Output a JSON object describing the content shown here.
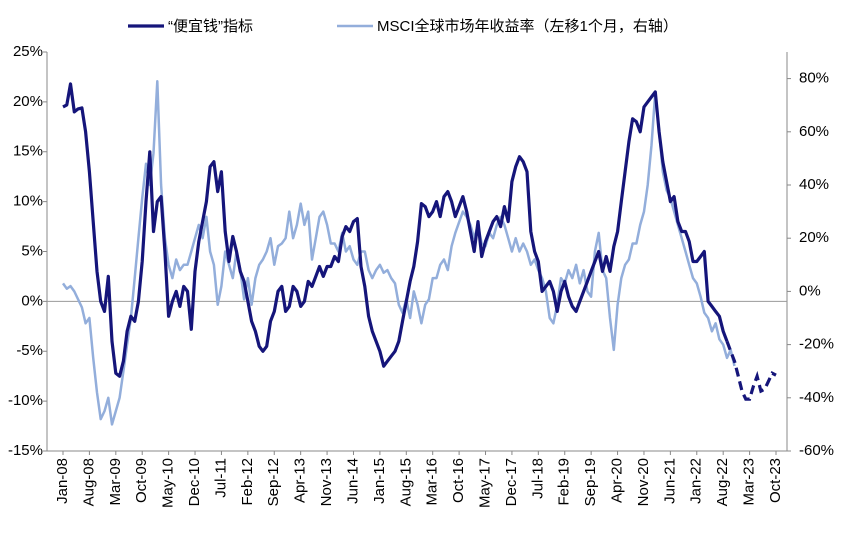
{
  "chart_data": {
    "type": "line",
    "categories": [
      "Jan-08",
      null,
      null,
      null,
      null,
      null,
      null,
      "Aug-08",
      null,
      null,
      null,
      null,
      null,
      null,
      "Mar-09",
      null,
      null,
      null,
      null,
      null,
      null,
      "Oct-09",
      null,
      null,
      null,
      null,
      null,
      null,
      "May-10",
      null,
      null,
      null,
      null,
      null,
      null,
      "Dec-10",
      null,
      null,
      null,
      null,
      null,
      null,
      "Jul-11",
      null,
      null,
      null,
      null,
      null,
      null,
      "Feb-12",
      null,
      null,
      null,
      null,
      null,
      null,
      "Sep-12",
      null,
      null,
      null,
      null,
      null,
      null,
      "Apr-13",
      null,
      null,
      null,
      null,
      null,
      null,
      "Nov-13",
      null,
      null,
      null,
      null,
      null,
      null,
      "Jun-14",
      null,
      null,
      null,
      null,
      null,
      null,
      "Jan-15",
      null,
      null,
      null,
      null,
      null,
      null,
      "Aug-15",
      null,
      null,
      null,
      null,
      null,
      null,
      "Mar-16",
      null,
      null,
      null,
      null,
      null,
      null,
      "Oct-16",
      null,
      null,
      null,
      null,
      null,
      null,
      "May-17",
      null,
      null,
      null,
      null,
      null,
      null,
      "Dec-17",
      null,
      null,
      null,
      null,
      null,
      null,
      "Jul-18",
      null,
      null,
      null,
      null,
      null,
      null,
      "Feb-19",
      null,
      null,
      null,
      null,
      null,
      null,
      "Sep-19",
      null,
      null,
      null,
      null,
      null,
      null,
      "Apr-20",
      null,
      null,
      null,
      null,
      null,
      null,
      "Nov-20",
      null,
      null,
      null,
      null,
      null,
      null,
      "Jun-21",
      null,
      null,
      null,
      null,
      null,
      null,
      "Jan-22",
      null,
      null,
      null,
      null,
      null,
      null,
      "Aug-22",
      null,
      null,
      null,
      null,
      null,
      null,
      "Mar-23",
      null,
      null,
      null,
      null,
      null,
      null,
      "Oct-23"
    ],
    "series": [
      {
        "name": "“便宜钱”指标",
        "color": "#15157a",
        "dash_from": 176,
        "values": [
          19.5,
          19.7,
          21.8,
          19,
          19.3,
          19.4,
          17,
          13,
          8,
          3,
          0,
          -1,
          2.5,
          -4,
          -7.2,
          -7.5,
          -6,
          -3,
          -1.5,
          -2,
          0,
          4,
          10,
          15,
          7,
          10,
          10.5,
          5,
          -1.5,
          0,
          1,
          -0.5,
          1.5,
          1,
          -2.8,
          3,
          6,
          8,
          10,
          13.5,
          14,
          11,
          13,
          7,
          4,
          6.5,
          5,
          3,
          2,
          0,
          -2,
          -3,
          -4.5,
          -5,
          -4.5,
          -2,
          -1,
          1,
          1.5,
          -1,
          -0.5,
          1.5,
          1,
          -0.5,
          0,
          2,
          1.5,
          2.5,
          3.5,
          2.5,
          3.5,
          3.5,
          4.5,
          4,
          6.5,
          7.5,
          7,
          8,
          8.3,
          3.5,
          1.5,
          -1.5,
          -3,
          -4,
          -5,
          -6.5,
          -6,
          -5.5,
          -5,
          -4,
          -2,
          0,
          2,
          3.5,
          6,
          9.8,
          9.5,
          8.5,
          9,
          10,
          8.5,
          10.5,
          11,
          10,
          8.5,
          9.5,
          10.5,
          9,
          7,
          5,
          8,
          4.5,
          6,
          7,
          8,
          8.5,
          7.5,
          9.5,
          8,
          12,
          13.5,
          14.5,
          14,
          13,
          7,
          5,
          4,
          1,
          1.5,
          2,
          1,
          -1,
          1,
          2,
          0.5,
          -0.5,
          -1,
          0,
          1,
          2,
          3,
          4,
          5,
          3,
          4.5,
          3,
          5.5,
          7,
          10,
          13,
          16,
          18.3,
          18,
          17,
          19.5,
          20,
          20.5,
          21,
          17,
          14,
          12,
          10,
          10.5,
          8,
          7,
          7,
          6,
          4,
          4,
          4.5,
          5,
          0,
          -0.5,
          -1,
          -1.5,
          -3,
          -4,
          -5,
          -6,
          -7.5,
          -9,
          -9.8,
          -9.8,
          -8.5,
          -7.5,
          -9,
          -8.8,
          -8,
          -7.2,
          -7.4
        ]
      },
      {
        "name": "MSCI全球市场年收益率（左移1个月，右轴）",
        "color": "#93aedb",
        "axis": "y2",
        "values": [
          3,
          1,
          2,
          0,
          -3,
          -6,
          -12,
          -10,
          -25,
          -38,
          -48,
          -45,
          -40,
          -50,
          -45,
          -40,
          -30,
          -20,
          -10,
          5,
          20,
          35,
          48,
          40,
          52,
          79,
          40,
          20,
          10,
          5,
          12,
          8,
          10,
          10,
          15,
          20,
          25,
          20,
          28,
          15,
          10,
          -5,
          2,
          15,
          10,
          5,
          15,
          8,
          -3,
          5,
          -5,
          5,
          10,
          12,
          15,
          20,
          10,
          17,
          18,
          20,
          30,
          20,
          25,
          33,
          25,
          30,
          12,
          20,
          28,
          30,
          25,
          18,
          18,
          15,
          22,
          15,
          17,
          12,
          10,
          15,
          15,
          8,
          5,
          8,
          10,
          7,
          8,
          5,
          3,
          -5,
          -8,
          -3,
          -10,
          0,
          -5,
          -12,
          -5,
          -3,
          5,
          5,
          10,
          12,
          8,
          17,
          22,
          26,
          30,
          28,
          25,
          20,
          25,
          18,
          17,
          22,
          20,
          25,
          28,
          25,
          20,
          15,
          20,
          15,
          18,
          15,
          10,
          12,
          8,
          5,
          0,
          -10,
          -12,
          -5,
          5,
          3,
          8,
          5,
          10,
          3,
          8,
          0,
          -2,
          15,
          22,
          8,
          5,
          -10,
          -22,
          -5,
          5,
          10,
          12,
          18,
          18,
          25,
          30,
          40,
          55,
          75,
          60,
          45,
          38,
          35,
          30,
          25,
          20,
          15,
          10,
          5,
          3,
          -2,
          -8,
          -10,
          -15,
          -12,
          -18,
          -20,
          -25,
          -22,
          -28,
          null,
          null,
          null,
          null,
          null,
          null,
          null,
          null,
          null,
          null,
          null
        ]
      }
    ],
    "ylim": [
      -15,
      25
    ],
    "yticks": [
      {
        "value": -15,
        "label": "-15%"
      },
      {
        "value": -10,
        "label": "-10%"
      },
      {
        "value": -5,
        "label": "-5%"
      },
      {
        "value": 0,
        "label": "0%"
      },
      {
        "value": 5,
        "label": "5%"
      },
      {
        "value": 10,
        "label": "10%"
      },
      {
        "value": 15,
        "label": "15%"
      },
      {
        "value": 20,
        "label": "20%"
      },
      {
        "value": 25,
        "label": "25%"
      }
    ],
    "y2lim": [
      -60,
      90
    ],
    "y2ticks": [
      {
        "value": -60,
        "label": "-60%"
      },
      {
        "value": -40,
        "label": "-40%"
      },
      {
        "value": -20,
        "label": "-20%"
      },
      {
        "value": 0,
        "label": "0%"
      },
      {
        "value": 20,
        "label": "20%"
      },
      {
        "value": 40,
        "label": "40%"
      },
      {
        "value": 60,
        "label": "60%"
      },
      {
        "value": 80,
        "label": "80%"
      }
    ],
    "negative_tick_color": "#e8201f",
    "legend": "top"
  }
}
